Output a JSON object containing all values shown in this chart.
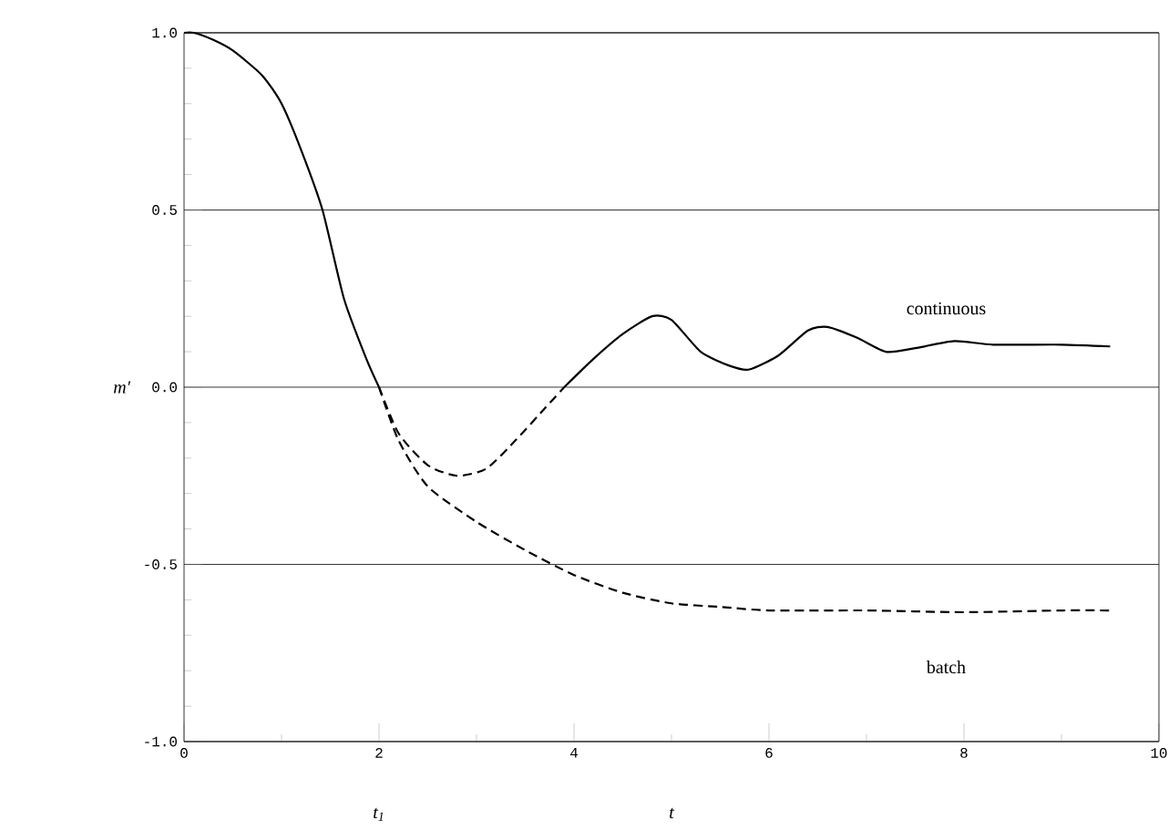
{
  "chart_data": {
    "type": "line",
    "xlabel": "*t*",
    "ylabel": "*m*′",
    "xlim": [
      0,
      10
    ],
    "xticks": [
      0,
      2,
      4,
      6,
      8,
      10
    ],
    "ylim": [
      -1.0,
      1.0
    ],
    "yticks": [
      {
        "value": -1.0,
        "label": "-1.0"
      },
      {
        "value": -0.5,
        "label": "-0.5"
      },
      {
        "value": 0.0,
        "label": "0.0"
      },
      {
        "value": 0.5,
        "label": "0.5"
      },
      {
        "value": 1.0,
        "label": "1.0"
      }
    ],
    "grid": "y",
    "marker": "none",
    "annotations": [
      "*t*$_{1}$"
    ],
    "series": [
      {
        "color": "#000000",
        "line_style": "solid",
        "x": [
          0,
          0.1,
          0.3,
          0.5,
          0.8,
          1.0,
          1.2,
          1.42,
          1.64,
          1.87,
          2.0
        ],
        "values": [
          1.0,
          1.0,
          0.98,
          0.95,
          0.88,
          0.8,
          0.67,
          0.5,
          0.25,
          0.08,
          0.0
        ]
      },
      {
        "color": "#000000",
        "line_style": "dashed",
        "x": [
          2.0,
          2.2,
          2.5,
          2.8,
          3.1,
          3.4,
          3.7,
          3.9
        ],
        "values": [
          0.0,
          -0.13,
          -0.22,
          -0.25,
          -0.23,
          -0.15,
          -0.06,
          0.0
        ]
      },
      {
        "name": "continuous",
        "color": "#000000",
        "line_style": "solid",
        "x": [
          3.9,
          4.2,
          4.5,
          4.8,
          5.0,
          5.3,
          5.6,
          5.8,
          6.1,
          6.4,
          6.6,
          6.9,
          7.2,
          7.5,
          7.9,
          8.3,
          9.0,
          9.5
        ],
        "values": [
          0.0,
          0.08,
          0.15,
          0.2,
          0.19,
          0.1,
          0.06,
          0.05,
          0.09,
          0.16,
          0.17,
          0.14,
          0.1,
          0.11,
          0.13,
          0.12,
          0.12,
          0.115
        ]
      },
      {
        "name": "batch",
        "color": "#000000",
        "line_style": "dashed",
        "x": [
          2.0,
          2.2,
          2.5,
          3.0,
          3.5,
          4.0,
          4.5,
          5.0,
          5.5,
          6.0,
          7.0,
          8.0,
          9.0,
          9.5
        ],
        "values": [
          0.0,
          -0.15,
          -0.28,
          -0.38,
          -0.46,
          -0.53,
          -0.58,
          -0.61,
          -0.62,
          -0.63,
          -0.63,
          -0.635,
          -0.63,
          -0.63
        ]
      }
    ]
  }
}
